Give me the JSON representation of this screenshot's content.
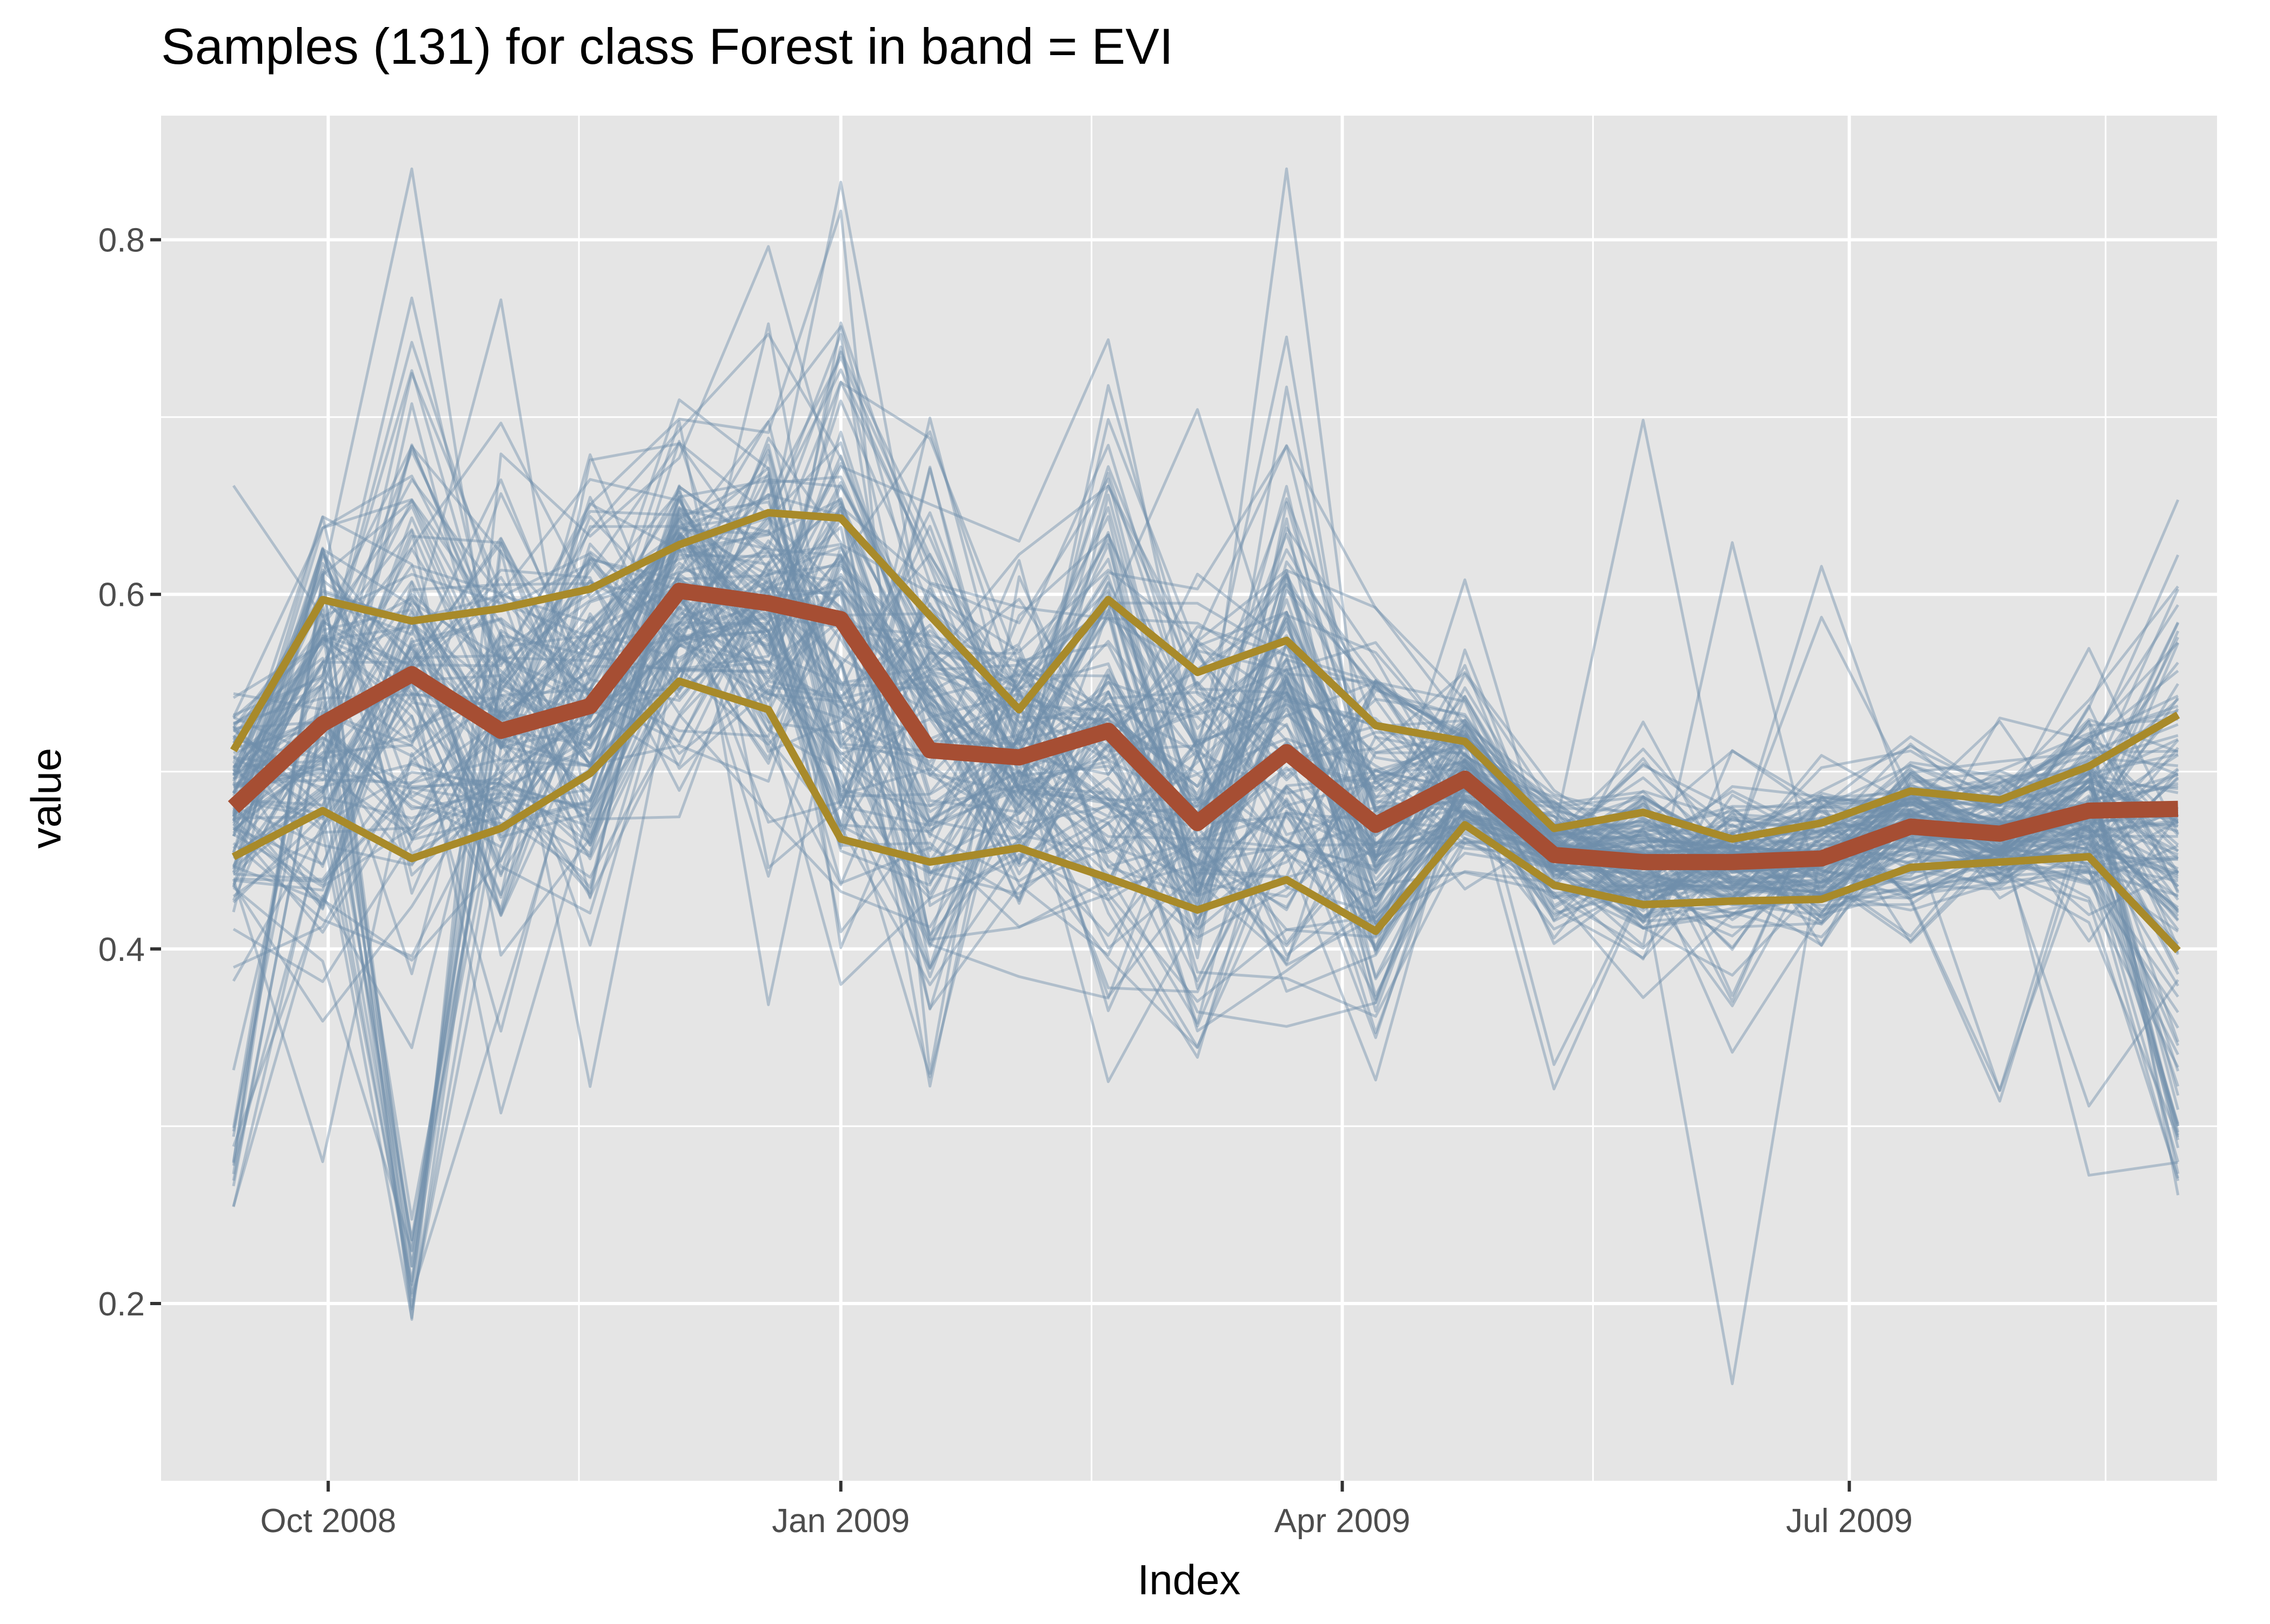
{
  "chart_data": {
    "type": "line",
    "title": "Samples (131) for class Forest in band = EVI",
    "xlabel": "Index",
    "ylabel": "value",
    "x": [
      "2008-09-14",
      "2008-09-30",
      "2008-10-16",
      "2008-11-01",
      "2008-11-17",
      "2008-12-03",
      "2008-12-19",
      "2009-01-01",
      "2009-01-17",
      "2009-02-02",
      "2009-02-18",
      "2009-03-06",
      "2009-03-22",
      "2009-04-07",
      "2009-04-23",
      "2009-05-09",
      "2009-05-25",
      "2009-06-10",
      "2009-06-26",
      "2009-07-12",
      "2009-07-28",
      "2009-08-13",
      "2009-08-29"
    ],
    "xlim": [
      "2008-09-01",
      "2009-09-05"
    ],
    "ylim": [
      0.1,
      0.87
    ],
    "x_ticks": [
      {
        "date": "2008-10-01",
        "label": "Oct 2008"
      },
      {
        "date": "2009-01-01",
        "label": "Jan 2009"
      },
      {
        "date": "2009-04-01",
        "label": "Apr 2009"
      },
      {
        "date": "2009-07-01",
        "label": "Jul 2009"
      }
    ],
    "x_minor_ticks": [
      "2008-11-15",
      "2009-02-15",
      "2009-05-16",
      "2009-08-16"
    ],
    "y_ticks": [
      0.2,
      0.4,
      0.6,
      0.8
    ],
    "y_minor_ticks": [
      0.3,
      0.5,
      0.7
    ],
    "grid": true,
    "legend": "none",
    "sample_count": 131,
    "colors": {
      "panel": "#e5e5e5",
      "grid": "#ffffff",
      "samples": "#6f8faa",
      "median": "#a64e33",
      "quantiles": "#a88a2a"
    },
    "series": [
      {
        "role": "median",
        "values": [
          0.48,
          0.527,
          0.555,
          0.523,
          0.537,
          0.602,
          0.595,
          0.586,
          0.512,
          0.508,
          0.523,
          0.471,
          0.511,
          0.47,
          0.496,
          0.453,
          0.449,
          0.449,
          0.451,
          0.469,
          0.465,
          0.478,
          0.479
        ]
      },
      {
        "role": "quantile-upper",
        "values": [
          0.512,
          0.597,
          0.585,
          0.592,
          0.603,
          0.628,
          0.646,
          0.643,
          0.588,
          0.535,
          0.597,
          0.556,
          0.574,
          0.526,
          0.517,
          0.468,
          0.477,
          0.462,
          0.471,
          0.489,
          0.484,
          0.503,
          0.532
        ]
      },
      {
        "role": "quantile-lower",
        "values": [
          0.452,
          0.478,
          0.451,
          0.468,
          0.499,
          0.551,
          0.535,
          0.462,
          0.449,
          0.457,
          0.44,
          0.422,
          0.439,
          0.41,
          0.47,
          0.436,
          0.425,
          0.427,
          0.428,
          0.446,
          0.449,
          0.452,
          0.399
        ]
      }
    ]
  }
}
